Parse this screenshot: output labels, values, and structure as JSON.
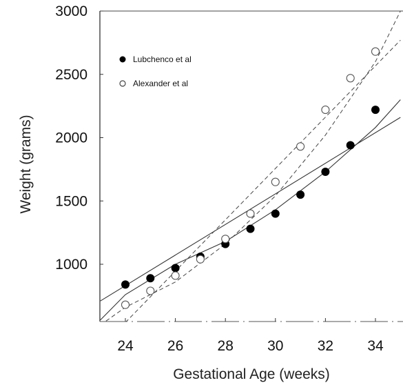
{
  "chart_data": {
    "type": "scatter",
    "title": "",
    "xlabel": "Gestational Age (weeks)",
    "ylabel": "Weight (grams)",
    "xlim": [
      23,
      35
    ],
    "ylim": [
      600,
      3000
    ],
    "xticks": [
      24,
      26,
      28,
      30,
      32,
      34
    ],
    "xtick_labels": [
      "24",
      "26",
      "28",
      "30",
      "32",
      "34"
    ],
    "yticks": [
      1000,
      1500,
      2000,
      2500,
      3000
    ],
    "ytick_labels": [
      "1000",
      "1500",
      "2000",
      "2500",
      "3000"
    ],
    "grid": false,
    "legend_position": "top-left",
    "series": [
      {
        "name": "Lubchenco et al",
        "marker": "filled-circle",
        "color": "#000000",
        "x": [
          24,
          25,
          26,
          27,
          28,
          29,
          30,
          31,
          32,
          33,
          34
        ],
        "y": [
          840,
          890,
          970,
          1060,
          1160,
          1280,
          1400,
          1550,
          1730,
          1940,
          2220
        ],
        "fit_lines": [
          {
            "style": "solid",
            "x": [
              23,
              35
            ],
            "y": [
              710,
              2160
            ]
          },
          {
            "style": "solid-curve",
            "x": [
              23,
              24,
              26,
              28,
              30,
              32,
              34,
              35
            ],
            "y": [
              560,
              760,
              1000,
              1180,
              1430,
              1730,
              2080,
              2300
            ]
          }
        ]
      },
      {
        "name": "Alexander et al",
        "marker": "open-circle",
        "color": "#555555",
        "x": [
          24,
          25,
          26,
          27,
          28,
          29,
          30,
          31,
          32,
          33,
          34
        ],
        "y": [
          680,
          790,
          910,
          1040,
          1200,
          1400,
          1650,
          1930,
          2220,
          2470,
          2680
        ],
        "fit_lines": [
          {
            "style": "dashed",
            "x": [
              24,
              35
            ],
            "y": [
              540,
              2770
            ]
          },
          {
            "style": "dashed-curve",
            "x": [
              23,
              24,
              26,
              28,
              30,
              32,
              34,
              35
            ],
            "y": [
              520,
              660,
              860,
              1160,
              1540,
              2020,
              2600,
              3000
            ]
          }
        ]
      }
    ]
  }
}
